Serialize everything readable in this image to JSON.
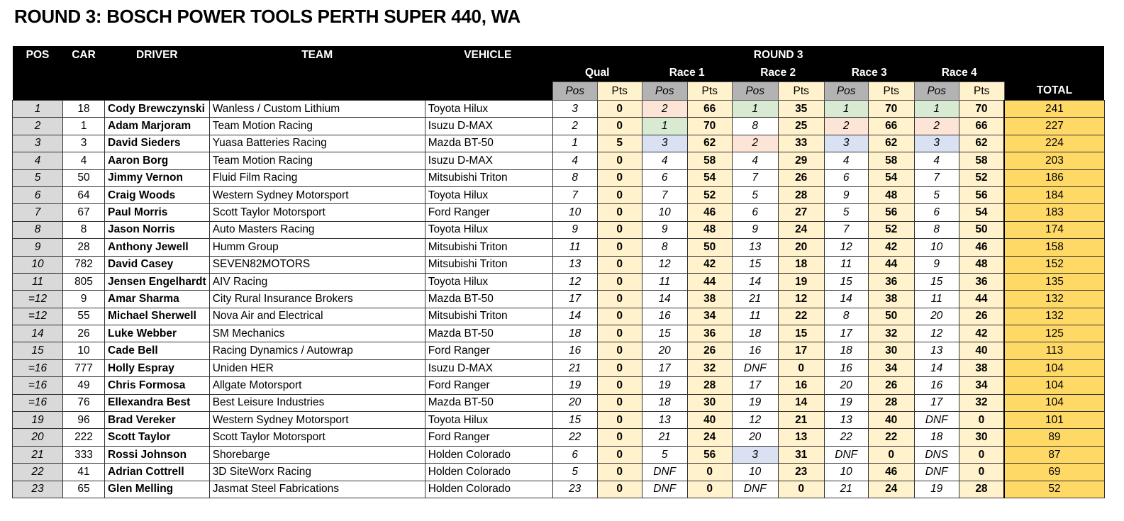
{
  "title": "ROUND 3: BOSCH POWER TOOLS PERTH SUPER 440, WA",
  "headers": {
    "pos": "POS",
    "car": "CAR",
    "driver": "DRIVER",
    "team": "TEAM",
    "vehicle": "VEHICLE",
    "round": "ROUND 3",
    "sessions": [
      "Qual",
      "Race 1",
      "Race 2",
      "Race 3",
      "Race 4"
    ],
    "sub_pos": "Pos",
    "sub_pts": "Pts",
    "total": "TOTAL"
  },
  "highlight_colors": {
    "1": "#d9ead3",
    "2": "#fce4d6",
    "3": "#d9e1f2"
  },
  "rows": [
    [
      "1",
      "18",
      "Cody Brewczynski",
      "Wanless / Custom Lithium",
      "Toyota Hilux",
      "3",
      "0",
      "2",
      "66",
      "1",
      "35",
      "1",
      "70",
      "1",
      "70",
      "241"
    ],
    [
      "2",
      "1",
      "Adam Marjoram",
      "Team Motion Racing",
      "Isuzu D-MAX",
      "2",
      "0",
      "1",
      "70",
      "8",
      "25",
      "2",
      "66",
      "2",
      "66",
      "227"
    ],
    [
      "3",
      "3",
      "David Sieders",
      "Yuasa Batteries Racing",
      "Mazda BT-50",
      "1",
      "5",
      "3",
      "62",
      "2",
      "33",
      "3",
      "62",
      "3",
      "62",
      "224"
    ],
    [
      "4",
      "4",
      "Aaron Borg",
      "Team Motion Racing",
      "Isuzu D-MAX",
      "4",
      "0",
      "4",
      "58",
      "4",
      "29",
      "4",
      "58",
      "4",
      "58",
      "203"
    ],
    [
      "5",
      "50",
      "Jimmy Vernon",
      "Fluid Film Racing",
      "Mitsubishi Triton",
      "8",
      "0",
      "6",
      "54",
      "7",
      "26",
      "6",
      "54",
      "7",
      "52",
      "186"
    ],
    [
      "6",
      "64",
      "Craig Woods",
      "Western Sydney Motorsport",
      "Toyota Hilux",
      "7",
      "0",
      "7",
      "52",
      "5",
      "28",
      "9",
      "48",
      "5",
      "56",
      "184"
    ],
    [
      "7",
      "67",
      "Paul Morris",
      "Scott Taylor Motorsport",
      "Ford Ranger",
      "10",
      "0",
      "10",
      "46",
      "6",
      "27",
      "5",
      "56",
      "6",
      "54",
      "183"
    ],
    [
      "8",
      "8",
      "Jason Norris",
      "Auto Masters Racing",
      "Toyota Hilux",
      "9",
      "0",
      "9",
      "48",
      "9",
      "24",
      "7",
      "52",
      "8",
      "50",
      "174"
    ],
    [
      "9",
      "28",
      "Anthony Jewell",
      "Humm Group",
      "Mitsubishi Triton",
      "11",
      "0",
      "8",
      "50",
      "13",
      "20",
      "12",
      "42",
      "10",
      "46",
      "158"
    ],
    [
      "10",
      "782",
      "David Casey",
      "SEVEN82MOTORS",
      "Mitsubishi Triton",
      "13",
      "0",
      "12",
      "42",
      "15",
      "18",
      "11",
      "44",
      "9",
      "48",
      "152"
    ],
    [
      "11",
      "805",
      "Jensen Engelhardt",
      "AIV Racing",
      "Toyota Hilux",
      "12",
      "0",
      "11",
      "44",
      "14",
      "19",
      "15",
      "36",
      "15",
      "36",
      "135"
    ],
    [
      "=12",
      "9",
      "Amar Sharma",
      "City Rural Insurance Brokers",
      "Mazda BT-50",
      "17",
      "0",
      "14",
      "38",
      "21",
      "12",
      "14",
      "38",
      "11",
      "44",
      "132"
    ],
    [
      "=12",
      "55",
      "Michael Sherwell",
      "Nova Air and Electrical",
      "Mitsubishi Triton",
      "14",
      "0",
      "16",
      "34",
      "11",
      "22",
      "8",
      "50",
      "20",
      "26",
      "132"
    ],
    [
      "14",
      "26",
      "Luke Webber",
      "SM Mechanics",
      "Mazda BT-50",
      "18",
      "0",
      "15",
      "36",
      "18",
      "15",
      "17",
      "32",
      "12",
      "42",
      "125"
    ],
    [
      "15",
      "10",
      "Cade Bell",
      "Racing Dynamics / Autowrap",
      "Ford Ranger",
      "16",
      "0",
      "20",
      "26",
      "16",
      "17",
      "18",
      "30",
      "13",
      "40",
      "113"
    ],
    [
      "=16",
      "777",
      "Holly Espray",
      "Uniden HER",
      "Isuzu D-MAX",
      "21",
      "0",
      "17",
      "32",
      "DNF",
      "0",
      "16",
      "34",
      "14",
      "38",
      "104"
    ],
    [
      "=16",
      "49",
      "Chris Formosa",
      "Allgate Motorsport",
      "Ford Ranger",
      "19",
      "0",
      "19",
      "28",
      "17",
      "16",
      "20",
      "26",
      "16",
      "34",
      "104"
    ],
    [
      "=16",
      "76",
      "Ellexandra Best",
      "Best Leisure Industries",
      "Mazda BT-50",
      "20",
      "0",
      "18",
      "30",
      "19",
      "14",
      "19",
      "28",
      "17",
      "32",
      "104"
    ],
    [
      "19",
      "96",
      "Brad Vereker",
      "Western Sydney Motorsport",
      "Toyota Hilux",
      "15",
      "0",
      "13",
      "40",
      "12",
      "21",
      "13",
      "40",
      "DNF",
      "0",
      "101"
    ],
    [
      "20",
      "222",
      "Scott Taylor",
      "Scott Taylor Motorsport",
      "Ford Ranger",
      "22",
      "0",
      "21",
      "24",
      "20",
      "13",
      "22",
      "22",
      "18",
      "30",
      "89"
    ],
    [
      "21",
      "333",
      "Rossi Johnson",
      "Shorebarge",
      "Holden Colorado",
      "6",
      "0",
      "5",
      "56",
      "3",
      "31",
      "DNF",
      "0",
      "DNS",
      "0",
      "87"
    ],
    [
      "22",
      "41",
      "Adrian Cottrell",
      "3D SiteWorx Racing",
      "Holden Colorado",
      "5",
      "0",
      "DNF",
      "0",
      "10",
      "23",
      "10",
      "46",
      "DNF",
      "0",
      "69"
    ],
    [
      "23",
      "65",
      "Glen Melling",
      "Jasmat Steel Fabrications",
      "Holden Colorado",
      "23",
      "0",
      "DNF",
      "0",
      "DNF",
      "0",
      "21",
      "24",
      "19",
      "28",
      "52"
    ]
  ]
}
